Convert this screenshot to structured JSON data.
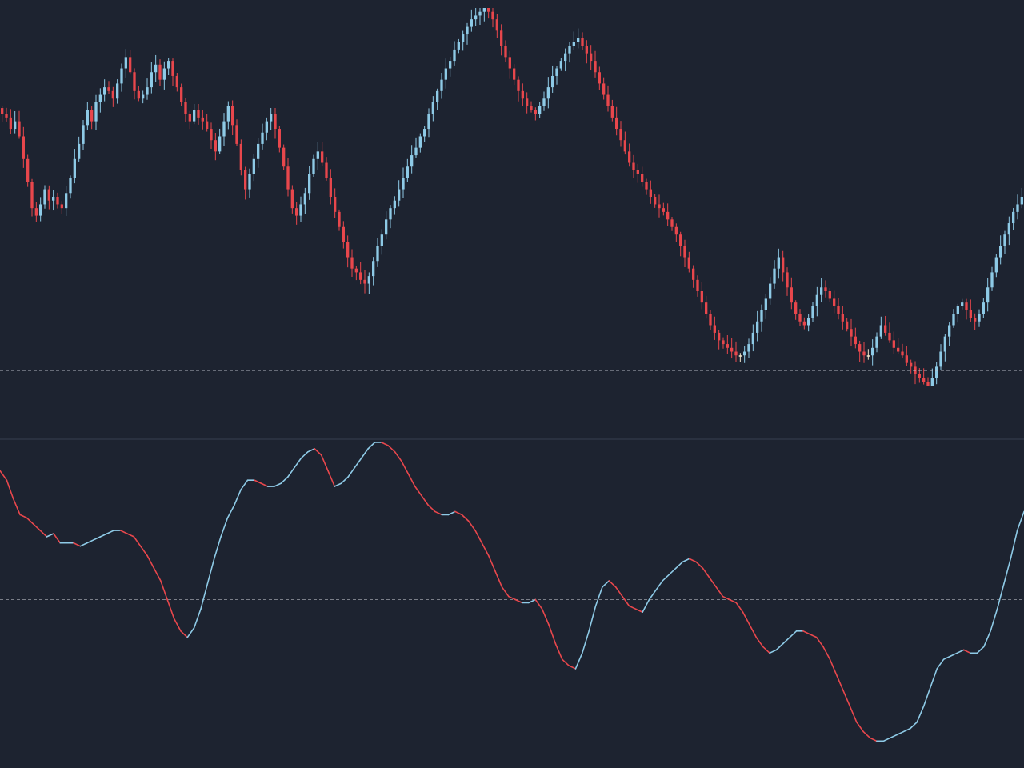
{
  "theme": {
    "background": "#1d2330",
    "up_color": "#8ecae6",
    "down_color": "#e8474c",
    "neutral_color": "#f2e6c9",
    "separator_color": "#2a3140",
    "reference_line_color": "#c8ccd4"
  },
  "chart_data": [
    {
      "type": "candlestick",
      "title": "",
      "xlabel": "",
      "ylabel": "",
      "ylim": [
        0,
        100
      ],
      "grid": false,
      "legend": "none",
      "reference_line": 4,
      "close_path": [
        72,
        71,
        68,
        70,
        66,
        60,
        54,
        47,
        45,
        48,
        52,
        49,
        50,
        48,
        47,
        51,
        55,
        60,
        64,
        69,
        73,
        70,
        75,
        77,
        79,
        78,
        76,
        80,
        84,
        87,
        83,
        78,
        76,
        77,
        79,
        83,
        85,
        81,
        84,
        86,
        82,
        79,
        75,
        72,
        70,
        73,
        71,
        70,
        68,
        65,
        62,
        66,
        70,
        74,
        69,
        64,
        57,
        52,
        56,
        60,
        64,
        67,
        70,
        72,
        68,
        63,
        58,
        52,
        47,
        45,
        48,
        51,
        56,
        60,
        62,
        59,
        55,
        50,
        46,
        42,
        38,
        34,
        31,
        30,
        28,
        27,
        29,
        33,
        37,
        40,
        44,
        47,
        49,
        52,
        55,
        58,
        61,
        63,
        66,
        68,
        72,
        75,
        78,
        81,
        84,
        86,
        89,
        91,
        93,
        95,
        97,
        98,
        99,
        100,
        99,
        97,
        94,
        90,
        87,
        84,
        81,
        78,
        76,
        74,
        73,
        72,
        74,
        76,
        79,
        82,
        84,
        86,
        88,
        90,
        91,
        92,
        90,
        88,
        86,
        83,
        80,
        77,
        74,
        71,
        68,
        65,
        62,
        59,
        57,
        56,
        54,
        52,
        50,
        48,
        47,
        46,
        44,
        42,
        40,
        37,
        34,
        31,
        28,
        25,
        22,
        19,
        16,
        14,
        12,
        11,
        10,
        9,
        8,
        8,
        9,
        11,
        14,
        17,
        20,
        23,
        27,
        31,
        34,
        30,
        26,
        22,
        19,
        17,
        16,
        18,
        21,
        24,
        26,
        25,
        23,
        21,
        19,
        17,
        15,
        13,
        11,
        9,
        8,
        8,
        10,
        13,
        16,
        14,
        12,
        10,
        9,
        8,
        6,
        5,
        3,
        2,
        1,
        0,
        2,
        5,
        9,
        13,
        16,
        19,
        21,
        22,
        20,
        18,
        17,
        19,
        22,
        26,
        30,
        34,
        37,
        40,
        43,
        46,
        48,
        50
      ]
    },
    {
      "type": "line",
      "title": "",
      "xlabel": "",
      "ylabel": "",
      "ylim": [
        0,
        100
      ],
      "grid": false,
      "legend": "none",
      "reference_line": 50,
      "values": [
        91,
        88,
        82,
        77,
        76,
        74,
        72,
        70,
        71,
        68,
        68,
        68,
        67,
        68,
        69,
        70,
        71,
        72,
        72,
        71,
        70,
        67,
        64,
        60,
        56,
        50,
        44,
        40,
        38,
        41,
        47,
        55,
        63,
        70,
        76,
        80,
        85,
        88,
        88,
        87,
        86,
        86,
        87,
        89,
        92,
        95,
        97,
        98,
        96,
        91,
        86,
        87,
        89,
        92,
        95,
        98,
        100,
        100,
        99,
        97,
        94,
        90,
        86,
        83,
        80,
        78,
        77,
        77,
        78,
        77,
        75,
        72,
        68,
        64,
        59,
        54,
        51,
        50,
        49,
        49,
        50,
        47,
        42,
        36,
        31,
        29,
        28,
        33,
        40,
        48,
        54,
        56,
        54,
        51,
        48,
        47,
        46,
        50,
        53,
        56,
        58,
        60,
        62,
        63,
        62,
        60,
        57,
        54,
        51,
        50,
        49,
        46,
        42,
        38,
        35,
        33,
        34,
        36,
        38,
        40,
        40,
        39,
        38,
        35,
        31,
        26,
        21,
        16,
        11,
        8,
        6,
        5,
        5,
        6,
        7,
        8,
        9,
        11,
        16,
        22,
        28,
        31,
        32,
        33,
        34,
        33,
        33,
        35,
        40,
        47,
        55,
        63,
        72,
        78
      ]
    }
  ]
}
